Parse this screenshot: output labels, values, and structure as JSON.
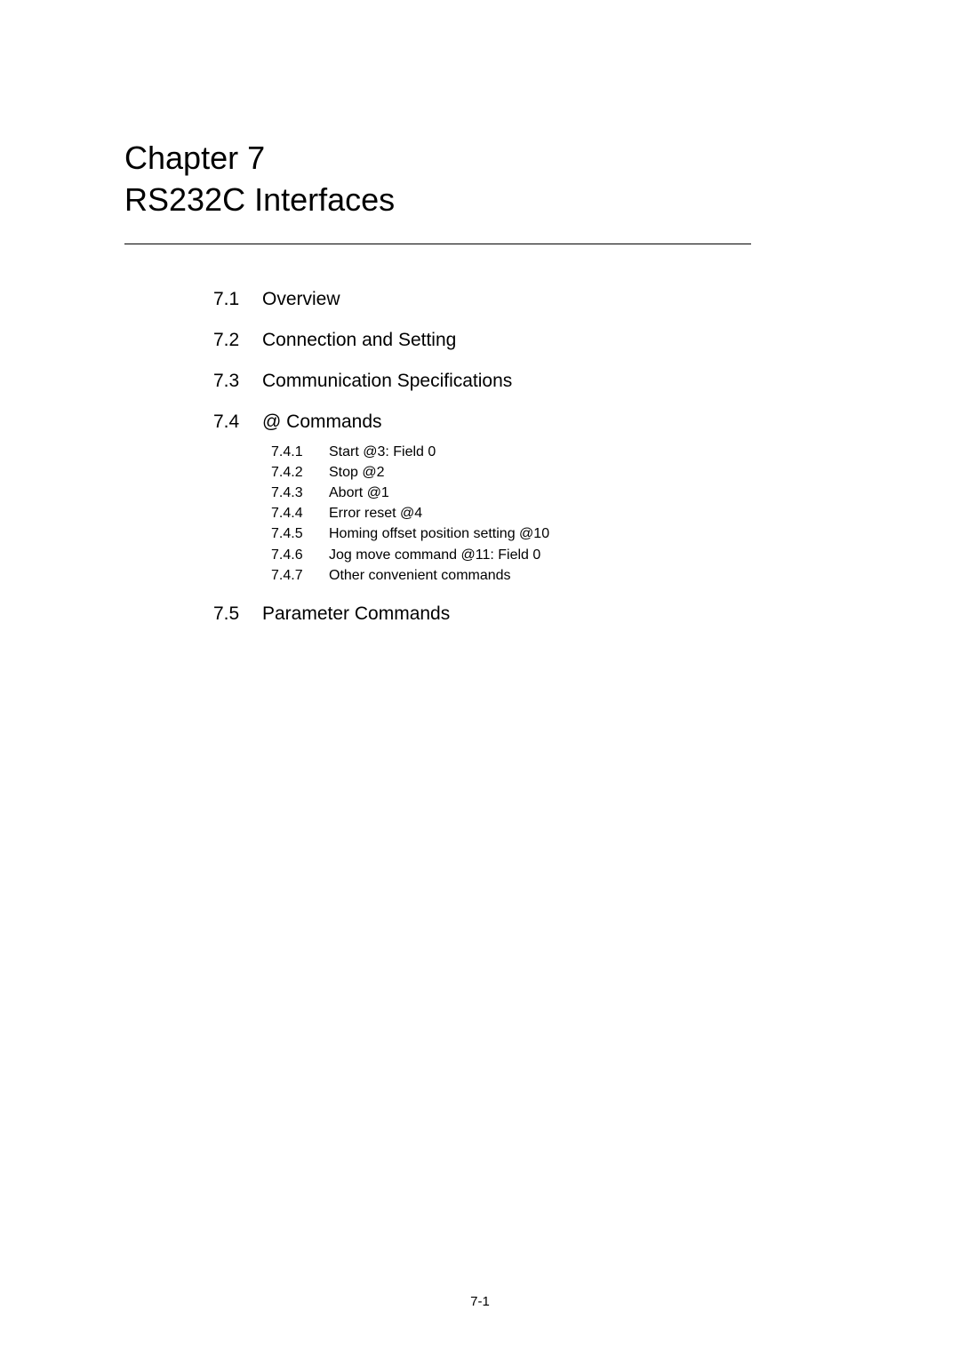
{
  "chapter": {
    "line1": "Chapter 7",
    "line2": "RS232C Interfaces"
  },
  "sections": [
    {
      "num": "7.1",
      "title": "Overview"
    },
    {
      "num": "7.2",
      "title": "Connection and Setting"
    },
    {
      "num": "7.3",
      "title": "Communication Specifications"
    },
    {
      "num": "7.4",
      "title": "@ Commands"
    },
    {
      "num": "7.5",
      "title": "Parameter Commands"
    }
  ],
  "subsections": [
    {
      "num": "7.4.1",
      "title": "Start   @3: Field 0"
    },
    {
      "num": "7.4.2",
      "title": "Stop   @2"
    },
    {
      "num": "7.4.3",
      "title": "Abort   @1"
    },
    {
      "num": "7.4.4",
      "title": "Error reset   @4"
    },
    {
      "num": "7.4.5",
      "title": "Homing offset position setting   @10"
    },
    {
      "num": "7.4.6",
      "title": "Jog move command   @11: Field 0"
    },
    {
      "num": "7.4.7",
      "title": "Other convenient commands"
    }
  ],
  "page_number": "7-1",
  "colors": {
    "background": "#ffffff",
    "text": "#000000",
    "underline": "#000000"
  },
  "typography": {
    "title_fontsize": 36,
    "section_fontsize": 21,
    "subsection_fontsize": 16,
    "pagenum_fontsize": 15,
    "font_family": "Arial"
  }
}
